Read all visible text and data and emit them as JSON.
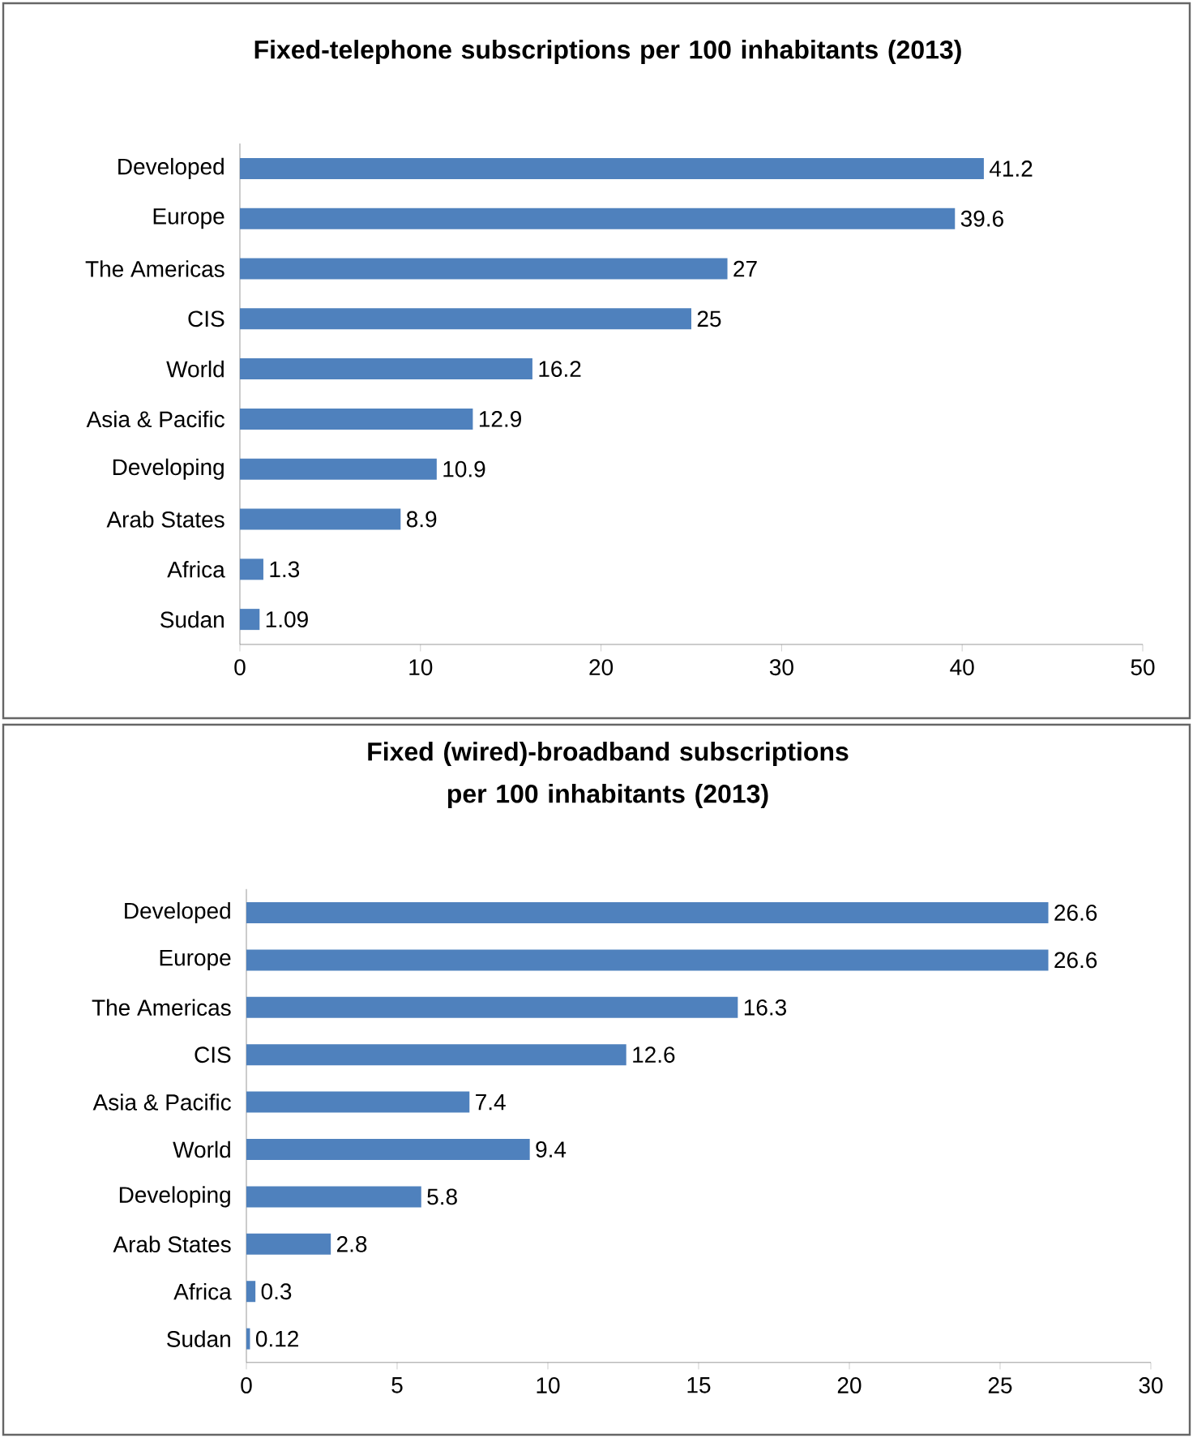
{
  "chart_data": [
    {
      "type": "bar",
      "orientation": "horizontal",
      "title": "Fixed-telephone subscriptions per 100 inhabitants (2013)",
      "categories": [
        "Developed",
        "Europe",
        "The Americas",
        "CIS",
        "World",
        "Asia & Pacific",
        "Developing",
        "Arab States",
        "Africa",
        "Sudan"
      ],
      "values": [
        41.2,
        39.6,
        27,
        25,
        16.2,
        12.9,
        10.9,
        8.9,
        1.3,
        1.09
      ],
      "color": "#4f81bd",
      "xlim": [
        0,
        50
      ],
      "xticks": [
        0,
        10,
        20,
        30,
        40,
        50
      ],
      "data_labels": true,
      "grid": false
    },
    {
      "type": "bar",
      "orientation": "horizontal",
      "title": "Fixed (wired)-broadband subscriptions per 100 inhabitants (2013)",
      "categories": [
        "Developed",
        "Europe",
        "The Americas",
        "CIS",
        "Asia & Pacific",
        "World",
        "Developing",
        "Arab States",
        "Africa",
        "Sudan"
      ],
      "values": [
        26.6,
        26.6,
        16.3,
        12.6,
        7.4,
        9.4,
        5.8,
        2.8,
        0.3,
        0.12
      ],
      "color": "#4f81bd",
      "xlim": [
        0,
        30
      ],
      "xticks": [
        0,
        5,
        10,
        15,
        20,
        25,
        30
      ],
      "data_labels": true,
      "grid": false
    }
  ]
}
